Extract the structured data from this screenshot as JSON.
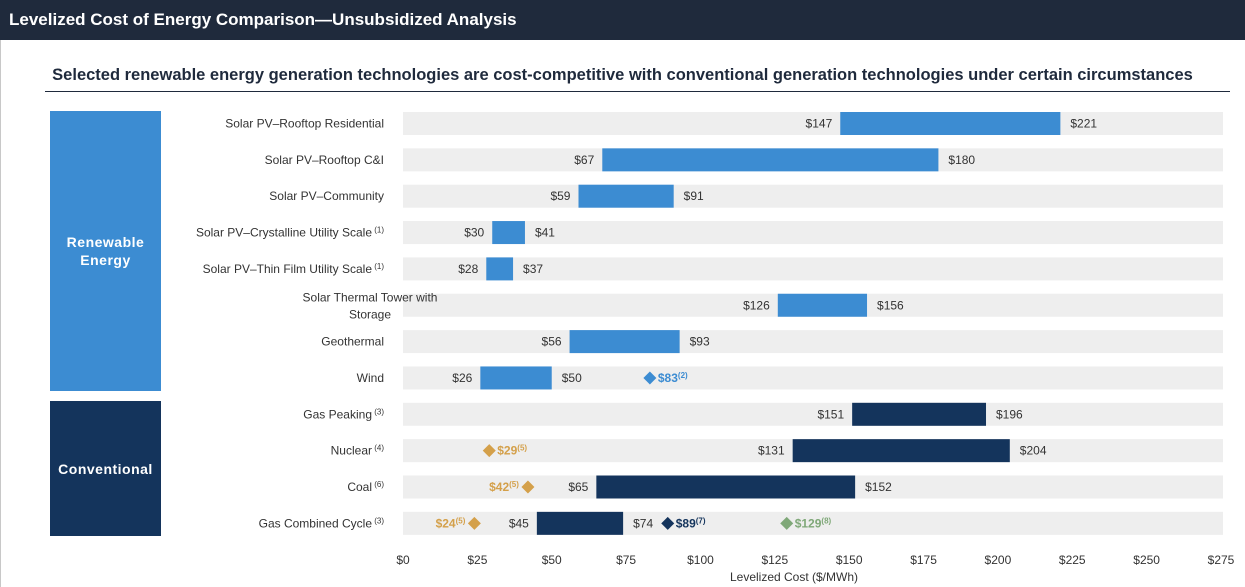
{
  "header": {
    "title": "Levelized Cost of Energy Comparison—Unsubsidized Analysis",
    "subtitle": "Selected renewable energy generation technologies are cost-competitive with conventional generation technologies under certain circumstances"
  },
  "groups": [
    {
      "label": "Renewable Energy",
      "color": "#3c8cd2"
    },
    {
      "label": "Conventional",
      "color": "#14345c"
    }
  ],
  "chart_data": {
    "type": "bar",
    "orientation": "horizontal-range",
    "xlabel": "Levelized Cost ($/MWh)",
    "xlim": [
      0,
      275
    ],
    "x_ticks": [
      "$0",
      "$25",
      "$50",
      "$75",
      "$100",
      "$125",
      "$150",
      "$175",
      "$200",
      "$225",
      "$250",
      "$275"
    ],
    "bars": [
      {
        "category": [
          "Solar PV–Rooftop Residential"
        ],
        "sup": "",
        "low": 147,
        "high": 221,
        "low_label": "$147",
        "high_label": "$221",
        "group": "Renewable Energy",
        "color": "#3c8cd2",
        "markers": []
      },
      {
        "category": [
          "Solar PV–Rooftop C&I"
        ],
        "sup": "",
        "low": 67,
        "high": 180,
        "low_label": "$67",
        "high_label": "$180",
        "group": "Renewable Energy",
        "color": "#3c8cd2",
        "markers": []
      },
      {
        "category": [
          "Solar PV–Community"
        ],
        "sup": "",
        "low": 59,
        "high": 91,
        "low_label": "$59",
        "high_label": "$91",
        "group": "Renewable Energy",
        "color": "#3c8cd2",
        "markers": []
      },
      {
        "category": [
          "Solar PV–Crystalline Utility Scale"
        ],
        "sup": "(1)",
        "low": 30,
        "high": 41,
        "low_label": "$30",
        "high_label": "$41",
        "group": "Renewable Energy",
        "color": "#3c8cd2",
        "markers": []
      },
      {
        "category": [
          "Solar PV–Thin Film Utility Scale"
        ],
        "sup": "(1)",
        "low": 28,
        "high": 37,
        "low_label": "$28",
        "high_label": "$37",
        "group": "Renewable Energy",
        "color": "#3c8cd2",
        "markers": []
      },
      {
        "category": [
          "Solar Thermal Tower with",
          "Storage"
        ],
        "sup": "",
        "low": 126,
        "high": 156,
        "low_label": "$126",
        "high_label": "$156",
        "group": "Renewable Energy",
        "color": "#3c8cd2",
        "markers": []
      },
      {
        "category": [
          "Geothermal"
        ],
        "sup": "",
        "low": 56,
        "high": 93,
        "low_label": "$56",
        "high_label": "$93",
        "group": "Renewable Energy",
        "color": "#3c8cd2",
        "markers": []
      },
      {
        "category": [
          "Wind"
        ],
        "sup": "",
        "low": 26,
        "high": 50,
        "low_label": "$26",
        "high_label": "$50",
        "group": "Renewable Energy",
        "color": "#3c8cd2",
        "markers": [
          {
            "value": 83,
            "label": "$83",
            "note": "(2)",
            "color": "#3c8cd2",
            "side": "right"
          }
        ]
      },
      {
        "category": [
          "Gas Peaking"
        ],
        "sup": "(3)",
        "low": 151,
        "high": 196,
        "low_label": "$151",
        "high_label": "$196",
        "group": "Conventional",
        "color": "#14345c",
        "markers": []
      },
      {
        "category": [
          "Nuclear"
        ],
        "sup": "(4)",
        "low": 131,
        "high": 204,
        "low_label": "$131",
        "high_label": "$204",
        "group": "Conventional",
        "color": "#14345c",
        "markers": [
          {
            "value": 29,
            "label": "$29",
            "note": "(5)",
            "color": "#d4a04a",
            "side": "right"
          }
        ]
      },
      {
        "category": [
          "Coal"
        ],
        "sup": "(6)",
        "low": 65,
        "high": 152,
        "low_label": "$65",
        "high_label": "$152",
        "group": "Conventional",
        "color": "#14345c",
        "markers": [
          {
            "value": 42,
            "label": "$42",
            "note": "(5)",
            "color": "#d4a04a",
            "side": "left"
          }
        ]
      },
      {
        "category": [
          "Gas Combined Cycle"
        ],
        "sup": "(3)",
        "low": 45,
        "high": 74,
        "low_label": "$45",
        "high_label": "$74",
        "group": "Conventional",
        "color": "#14345c",
        "markers": [
          {
            "value": 24,
            "label": "$24",
            "note": "(5)",
            "color": "#d4a04a",
            "side": "left"
          },
          {
            "value": 89,
            "label": "$89",
            "note": "(7)",
            "color": "#14345c",
            "side": "right"
          },
          {
            "value": 129,
            "label": "$129",
            "note": "(8)",
            "color": "#7fa878",
            "side": "right"
          }
        ]
      }
    ]
  }
}
